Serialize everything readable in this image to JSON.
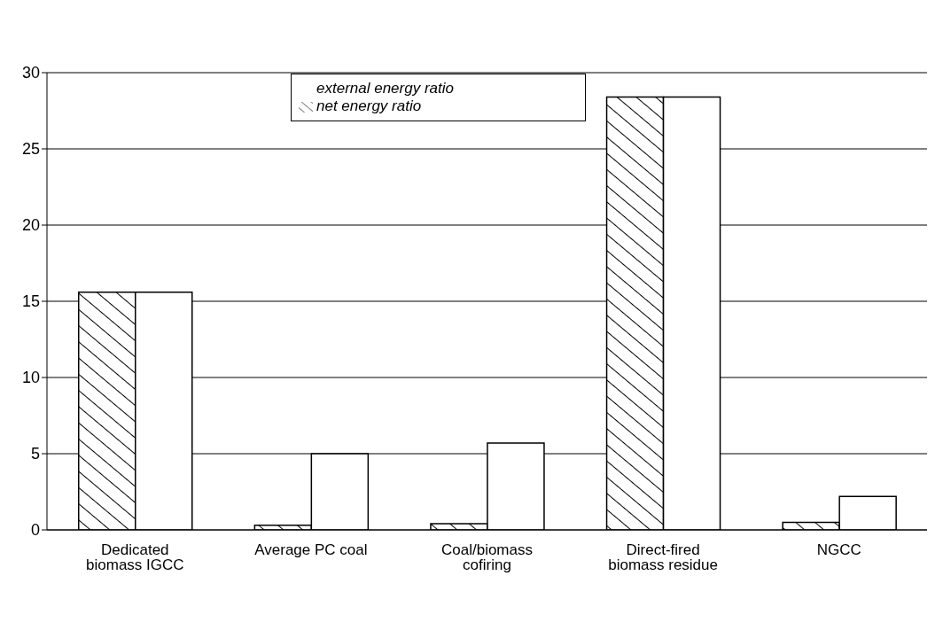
{
  "chart_data": {
    "type": "bar",
    "categories": [
      "Dedicated biomass IGCC",
      "Average PC coal",
      "Coal/biomass cofiring",
      "Direct-fired biomass residue",
      "NGCC"
    ],
    "series": [
      {
        "name": "net energy ratio",
        "color": "#000000",
        "values": [
          15.6,
          0.3,
          0.4,
          28.4,
          0.5
        ]
      },
      {
        "name": "external energy ratio",
        "color": "#ffffff",
        "values": [
          15.6,
          5.0,
          5.7,
          28.4,
          2.2
        ]
      }
    ],
    "ylim": [
      0,
      30
    ],
    "yticks": [
      0,
      5,
      10,
      15,
      20,
      25,
      30
    ],
    "grid": "y",
    "legend": "top"
  }
}
